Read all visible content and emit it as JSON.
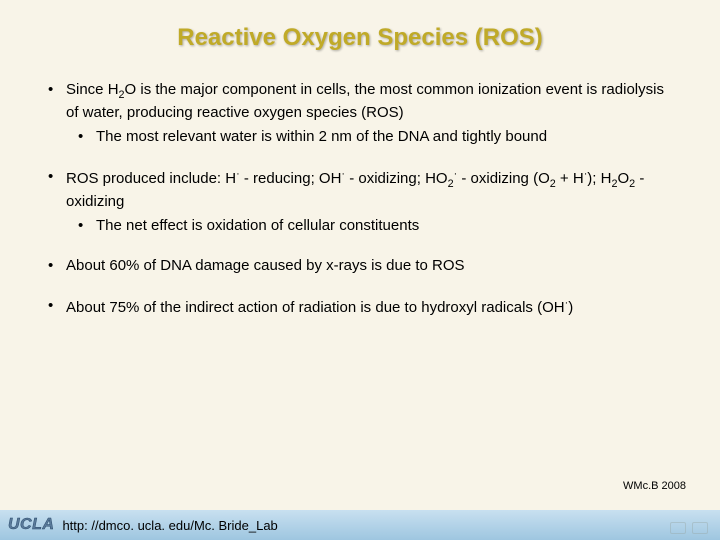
{
  "title": "Reactive Oxygen Species (ROS)",
  "bullets": {
    "b1": "Since H",
    "b1_sub": "2",
    "b1_cont": "O is the major component in cells, the most common ionization event is radiolysis of water, producing reactive oxygen species (ROS)",
    "b1a": "The most relevant water is within 2 nm of the DNA and tightly bound",
    "b2_a": "ROS produced include: H",
    "b2_b": " - reducing; OH",
    "b2_c": " - oxidizing; HO",
    "b2_d": " - oxidizing (O",
    "b2_e": " + H",
    "b2_f": "); H",
    "b2_g": "O",
    "b2_h": " - oxidizing",
    "b2a": "The net effect is oxidation of cellular constituents",
    "b3": "About 60% of DNA damage caused by x-rays is due to ROS",
    "b4_a": "About 75% of the indirect action of radiation is due to hydroxyl radicals (OH",
    "b4_b": ")",
    "dot": "·",
    "two": "2"
  },
  "attribution": "WMc.B 2008",
  "footer": {
    "logo": "UCLA",
    "url": "http: //dmco. ucla. edu/Mc. Bride_Lab"
  },
  "colors": {
    "background": "#f8f4e8",
    "title": "#c0aa28",
    "text": "#000000",
    "footer_grad_top": "#c8e0f0",
    "footer_grad_bottom": "#9ec6e0"
  }
}
